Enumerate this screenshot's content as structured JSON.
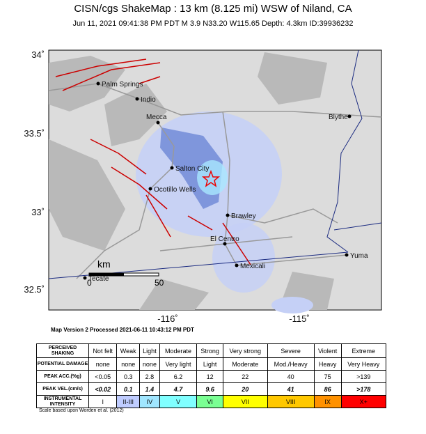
{
  "header": {
    "title": "CISN/cgs ShakeMap : 13 km (8.125 mi) WSW of Niland, CA",
    "subtitle": "Jun 11, 2021 09:41:38 PM PDT   M 3.9   N33.20 W115.65   Depth: 4.3km   ID:39936232"
  },
  "map": {
    "lat_labels": [
      "34˚",
      "33.5˚",
      "33˚",
      "32.5˚"
    ],
    "lon_labels": [
      "-116˚",
      "-115˚"
    ],
    "cities": [
      "Palm Springs",
      "Indio",
      "Mecca",
      "Blythe",
      "Salton City",
      "Ocotillo Wells",
      "Brawley",
      "El Centro",
      "Mexicali",
      "Yuma",
      "Tecate"
    ],
    "scale": [
      "km",
      "0",
      "50"
    ],
    "version": "Map Version 2 Processed 2021-06-11 10:43:12 PM PDT"
  },
  "table": {
    "rows": [
      [
        "PERCEIVED SHAKING",
        "Not felt",
        "Weak",
        "Light",
        "Moderate",
        "Strong",
        "Very strong",
        "Severe",
        "Violent",
        "Extreme"
      ],
      [
        "POTENTIAL DAMAGE",
        "none",
        "none",
        "none",
        "Very light",
        "Light",
        "Moderate",
        "Mod./Heavy",
        "Heavy",
        "Very Heavy"
      ],
      [
        "PEAK ACC.(%g)",
        "<0.05",
        "0.3",
        "2.8",
        "6.2",
        "12",
        "22",
        "40",
        "75",
        ">139"
      ],
      [
        "PEAK VEL.(cm/s)",
        "<0.02",
        "0.1",
        "1.4",
        "4.7",
        "9.6",
        "20",
        "41",
        "86",
        ">178"
      ],
      [
        "INSTRUMENTAL INTENSITY",
        "I",
        "II-III",
        "IV",
        "V",
        "VI",
        "VII",
        "VIII",
        "IX",
        "X+"
      ]
    ],
    "intensity_colors": [
      "#ffffff",
      "#bfccff",
      "#a0e6ff",
      "#80ffff",
      "#7aff93",
      "#ffff00",
      "#ffc800",
      "#ff9100",
      "#ff0000"
    ],
    "note": "Scale based upon Worden et al. (2012)"
  }
}
